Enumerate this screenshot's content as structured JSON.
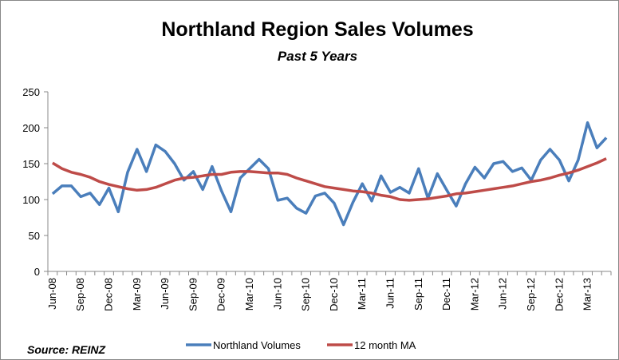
{
  "chart_data": {
    "type": "line",
    "title": "Northland Region Sales Volumes",
    "subtitle": "Past 5 Years",
    "source": "Source: REINZ",
    "categories": [
      "Jun-08",
      null,
      null,
      "Sep-08",
      null,
      null,
      "Dec-08",
      null,
      null,
      "Mar-09",
      null,
      null,
      "Jun-09",
      null,
      null,
      "Sep-09",
      null,
      null,
      "Dec-09",
      null,
      null,
      "Mar-10",
      null,
      null,
      "Jun-10",
      null,
      null,
      "Sep-10",
      null,
      null,
      "Dec-10",
      null,
      null,
      "Mar-11",
      null,
      null,
      "Jun-11",
      null,
      null,
      "Sep-11",
      null,
      null,
      "Dec-11",
      null,
      null,
      "Mar-12",
      null,
      null,
      "Jun-12",
      null,
      null,
      "Sep-12",
      null,
      null,
      "Dec-12",
      null,
      null,
      "Mar-13",
      null,
      null
    ],
    "series": [
      {
        "name": "Northland Volumes",
        "color": "#4a7ebb",
        "values": [
          108,
          119,
          119,
          104,
          109,
          93,
          116,
          83,
          138,
          170,
          139,
          176,
          167,
          150,
          127,
          139,
          114,
          146,
          112,
          83,
          130,
          143,
          156,
          143,
          99,
          102,
          88,
          81,
          105,
          109,
          95,
          65,
          96,
          122,
          98,
          133,
          110,
          117,
          109,
          143,
          102,
          136,
          113,
          91,
          122,
          145,
          130,
          150,
          153,
          139,
          144,
          127,
          155,
          170,
          155,
          126,
          155,
          207,
          172,
          186
        ]
      },
      {
        "name": "12 month MA",
        "color": "#be4b48",
        "values": [
          151,
          143,
          138,
          135,
          131,
          125,
          121,
          118,
          115,
          113,
          114,
          117,
          122,
          127,
          130,
          131,
          133,
          135,
          135,
          138,
          139,
          139,
          138,
          137,
          137,
          135,
          130,
          126,
          122,
          118,
          116,
          114,
          112,
          111,
          109,
          106,
          104,
          100,
          99,
          100,
          101,
          103,
          105,
          108,
          109,
          111,
          113,
          115,
          117,
          119,
          122,
          125,
          127,
          130,
          134,
          137,
          141,
          146,
          151,
          157
        ]
      }
    ],
    "ylim": [
      0,
      250
    ],
    "yticks": [
      0,
      50,
      100,
      150,
      200,
      250
    ],
    "grid": false
  }
}
